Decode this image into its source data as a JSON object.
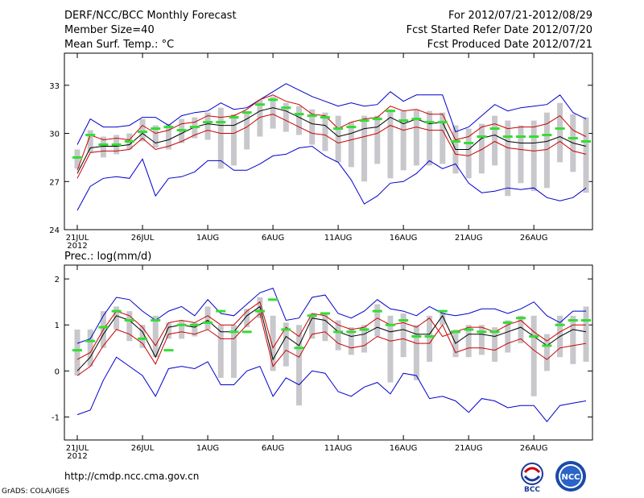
{
  "header": {
    "title": "DERF/NCC/BCC Monthly Forecast",
    "member_size": "Member Size=40",
    "variable": "Mean Surf. Temp.: °C",
    "forecast_period": "For 2012/07/21-2012/08/29",
    "started_date": "Fcst Started Refer Date 2012/07/20",
    "produced_date": "Fcst Produced Date 2012/07/21"
  },
  "footer": {
    "url": "http://cmdp.ncc.cma.gov.cn",
    "grads": "GrADS: COLA/IGES",
    "logo_bcc": "BCC",
    "logo_ncc": "NCC"
  },
  "colors": {
    "max_min": "#0000cc",
    "spread": "#cc0000",
    "mean": "#000000",
    "median": "#33dd33",
    "box": "#c8c8cc"
  },
  "chart_data": [
    {
      "type": "line",
      "title": "Mean Surf. Temp.: °C",
      "xlabel": "",
      "ylabel": "",
      "ylim": [
        24,
        35
      ],
      "yticks": [
        24,
        27,
        30,
        33
      ],
      "year_label": "2012",
      "x_tick_days": [
        1,
        6,
        11,
        16,
        21,
        26,
        31,
        36
      ],
      "x_tick_labels": [
        "21JUL",
        "26JUL",
        "1AUG",
        "6AUG",
        "11AUG",
        "16AUG",
        "21AUG",
        "26AUG"
      ],
      "days": [
        1,
        2,
        3,
        4,
        5,
        6,
        7,
        8,
        9,
        10,
        11,
        12,
        13,
        14,
        15,
        16,
        17,
        18,
        19,
        20,
        21,
        22,
        23,
        24,
        25,
        26,
        27,
        28,
        29,
        30,
        31,
        32,
        33,
        34,
        35,
        36,
        37,
        38,
        39,
        40
      ],
      "series": [
        {
          "name": "max",
          "values": [
            25.2,
            26.7,
            27.2,
            27.3,
            27.2,
            28.4,
            26.1,
            27.2,
            27.3,
            27.6,
            28.3,
            28.3,
            27.7,
            27.7,
            28.1,
            28.6,
            28.7,
            29.1,
            29.2,
            28.6,
            28.2,
            27.1,
            25.6,
            26.1,
            26.9,
            27.0,
            27.5,
            28.3,
            27.8,
            28.1,
            26.9,
            26.3,
            26.4,
            26.6,
            26.5,
            26.6,
            26.0,
            25.8,
            26.0,
            26.6
          ]
        },
        {
          "name": "min",
          "values": [
            29.3,
            30.9,
            30.4,
            30.4,
            30.5,
            31.0,
            31.0,
            30.5,
            31.1,
            31.3,
            31.4,
            31.9,
            31.5,
            31.6,
            32.1,
            32.6,
            33.1,
            32.7,
            32.3,
            32.0,
            31.7,
            31.9,
            31.7,
            31.8,
            32.6,
            32.0,
            32.4,
            32.4,
            32.4,
            30.1,
            30.4,
            31.1,
            31.8,
            31.4,
            31.6,
            31.7,
            31.8,
            32.4,
            31.3,
            30.9
          ]
        },
        {
          "name": "upper",
          "values": [
            27.7,
            29.9,
            29.6,
            29.7,
            29.6,
            30.5,
            30.0,
            30.2,
            30.6,
            30.7,
            31.1,
            31.0,
            31.1,
            31.5,
            32.1,
            32.4,
            32.0,
            31.8,
            31.2,
            31.1,
            30.3,
            30.7,
            30.9,
            31.0,
            31.7,
            31.4,
            31.5,
            31.2,
            31.2,
            29.6,
            29.8,
            30.4,
            30.6,
            30.3,
            30.4,
            30.4,
            30.6,
            31.1,
            30.2,
            29.8
          ]
        },
        {
          "name": "mean",
          "values": [
            27.5,
            29.1,
            29.2,
            29.2,
            29.3,
            30.0,
            29.4,
            29.6,
            30.0,
            30.4,
            30.6,
            30.5,
            30.5,
            30.9,
            31.4,
            31.6,
            31.4,
            31.0,
            30.6,
            30.5,
            29.8,
            30.0,
            30.3,
            30.4,
            31.0,
            30.6,
            30.9,
            30.6,
            30.7,
            29.0,
            29.0,
            29.7,
            29.9,
            29.5,
            29.4,
            29.4,
            29.5,
            29.8,
            29.4,
            29.2
          ]
        },
        {
          "name": "lower",
          "values": [
            27.2,
            28.8,
            28.9,
            28.9,
            29.0,
            29.7,
            29.0,
            29.2,
            29.5,
            29.9,
            30.2,
            30.0,
            30.0,
            30.4,
            31.0,
            31.2,
            30.8,
            30.4,
            30.0,
            29.9,
            29.4,
            29.6,
            29.8,
            30.0,
            30.5,
            30.2,
            30.4,
            30.2,
            30.2,
            28.7,
            28.6,
            29.0,
            29.5,
            29.1,
            29.0,
            28.9,
            29.0,
            29.5,
            28.9,
            28.7
          ]
        }
      ],
      "median": [
        28.5,
        29.9,
        29.3,
        29.3,
        29.5,
        30.1,
        30.3,
        30.4,
        30.2,
        30.4,
        30.7,
        30.7,
        31.0,
        31.3,
        31.8,
        32.1,
        31.6,
        31.2,
        31.1,
        31.0,
        30.3,
        30.4,
        30.8,
        30.9,
        31.4,
        30.8,
        30.9,
        30.7,
        30.7,
        29.5,
        29.4,
        29.8,
        30.3,
        29.8,
        29.8,
        29.8,
        29.9,
        30.3,
        29.7,
        29.5
      ],
      "box_high": [
        29.0,
        30.2,
        29.8,
        29.9,
        30.0,
        30.9,
        30.5,
        30.6,
        30.9,
        31.0,
        31.3,
        31.6,
        31.2,
        31.4,
        32.1,
        32.3,
        31.9,
        31.7,
        31.5,
        31.3,
        31.1,
        30.7,
        31.1,
        31.1,
        31.5,
        31.4,
        31.5,
        31.4,
        31.3,
        30.5,
        30.3,
        30.6,
        31.1,
        30.8,
        30.5,
        30.8,
        31.3,
        31.9,
        31.2,
        31.0
      ],
      "box_low": [
        27.8,
        28.8,
        28.5,
        28.7,
        29.0,
        29.5,
        29.1,
        29.0,
        29.4,
        29.7,
        29.6,
        27.8,
        28.0,
        29.0,
        29.8,
        30.3,
        30.1,
        29.9,
        29.3,
        28.9,
        28.2,
        27.9,
        27.0,
        28.1,
        27.2,
        27.7,
        28.0,
        28.0,
        28.1,
        27.5,
        27.2,
        27.5,
        28.0,
        26.1,
        26.9,
        26.4,
        26.6,
        28.2,
        27.6,
        26.3
      ]
    },
    {
      "type": "line",
      "title": "Prec.: log(mm/d)",
      "xlabel": "",
      "ylabel": "",
      "ylim": [
        -1.5,
        2.3
      ],
      "yticks": [
        -1,
        0,
        1,
        2
      ],
      "year_label": "2012",
      "x_tick_days": [
        1,
        6,
        11,
        16,
        21,
        26,
        31,
        36
      ],
      "x_tick_labels": [
        "21JUL",
        "26JUL",
        "1AUG",
        "6AUG",
        "11AUG",
        "16AUG",
        "21AUG",
        "26AUG"
      ],
      "days": [
        1,
        2,
        3,
        4,
        5,
        6,
        7,
        8,
        9,
        10,
        11,
        12,
        13,
        14,
        15,
        16,
        17,
        18,
        19,
        20,
        21,
        22,
        23,
        24,
        25,
        26,
        27,
        28,
        29,
        30,
        31,
        32,
        33,
        34,
        35,
        36,
        37,
        38,
        39,
        40
      ],
      "series": [
        {
          "name": "max",
          "values": [
            -0.95,
            -0.85,
            -0.2,
            0.3,
            0.1,
            -0.1,
            -0.55,
            0.05,
            0.1,
            0.05,
            0.2,
            -0.3,
            -0.3,
            0.0,
            0.1,
            -0.55,
            -0.15,
            -0.3,
            0.0,
            -0.05,
            -0.45,
            -0.55,
            -0.35,
            -0.25,
            -0.5,
            -0.05,
            -0.1,
            -0.6,
            -0.55,
            -0.65,
            -0.9,
            -0.6,
            -0.65,
            -0.8,
            -0.75,
            -0.75,
            -1.1,
            -0.75,
            -0.7,
            -0.65
          ]
        },
        {
          "name": "min",
          "values": [
            0.6,
            0.7,
            1.2,
            1.6,
            1.55,
            1.3,
            1.1,
            1.3,
            1.4,
            1.2,
            1.55,
            1.25,
            1.2,
            1.45,
            1.7,
            1.8,
            1.1,
            1.15,
            1.6,
            1.65,
            1.25,
            1.15,
            1.3,
            1.55,
            1.35,
            1.3,
            1.2,
            1.4,
            1.25,
            1.2,
            1.25,
            1.35,
            1.35,
            1.25,
            1.35,
            1.5,
            1.2,
            1.05,
            1.3,
            1.3
          ]
        },
        {
          "name": "upper",
          "values": [
            0.25,
            0.4,
            0.9,
            1.3,
            1.2,
            0.95,
            0.55,
            1.05,
            1.1,
            1.05,
            1.2,
            1.0,
            1.0,
            1.3,
            1.5,
            0.5,
            0.95,
            0.75,
            1.25,
            1.2,
            1.0,
            0.9,
            0.95,
            1.15,
            1.0,
            1.05,
            0.95,
            1.15,
            0.75,
            0.85,
            0.95,
            0.95,
            0.85,
            1.0,
            1.1,
            0.85,
            0.65,
            0.85,
            1.0,
            1.0
          ]
        },
        {
          "name": "mean",
          "values": [
            0.0,
            0.3,
            0.8,
            1.2,
            1.1,
            0.85,
            0.3,
            0.95,
            1.0,
            0.95,
            1.1,
            0.85,
            0.85,
            1.2,
            1.4,
            0.25,
            0.75,
            0.55,
            1.15,
            1.1,
            0.85,
            0.75,
            0.8,
            0.95,
            0.85,
            0.9,
            0.8,
            0.8,
            1.2,
            0.6,
            0.8,
            0.8,
            0.75,
            0.85,
            0.95,
            0.75,
            0.55,
            0.75,
            0.9,
            0.85
          ]
        },
        {
          "name": "lower",
          "values": [
            -0.1,
            0.1,
            0.55,
            0.9,
            0.8,
            0.6,
            0.15,
            0.8,
            0.85,
            0.8,
            0.9,
            0.7,
            0.7,
            1.0,
            1.25,
            0.1,
            0.45,
            0.3,
            0.8,
            0.85,
            0.6,
            0.5,
            0.55,
            0.75,
            0.65,
            0.7,
            0.6,
            0.6,
            1.0,
            0.4,
            0.5,
            0.5,
            0.45,
            0.6,
            0.7,
            0.45,
            0.25,
            0.5,
            0.55,
            0.6
          ]
        }
      ],
      "median": [
        0.45,
        0.65,
        0.95,
        1.3,
        1.1,
        0.7,
        1.1,
        0.45,
        1.0,
        1.0,
        1.05,
        1.3,
        0.85,
        0.85,
        1.3,
        1.55,
        0.9,
        0.5,
        1.2,
        1.25,
        0.85,
        0.85,
        0.9,
        1.3,
        1.0,
        1.1,
        0.75,
        0.75,
        1.3,
        0.85,
        0.9,
        0.85,
        0.85,
        1.05,
        1.15,
        0.75,
        0.55,
        1.0,
        1.1,
        1.1
      ],
      "box_high": [
        0.9,
        0.9,
        1.3,
        1.4,
        1.3,
        1.0,
        1.2,
        1.05,
        1.1,
        1.05,
        1.4,
        1.0,
        1.0,
        1.35,
        1.6,
        1.2,
        1.05,
        1.0,
        1.25,
        1.25,
        1.1,
        0.95,
        1.0,
        1.45,
        1.2,
        1.25,
        1.0,
        1.2,
        1.3,
        0.9,
        1.0,
        1.0,
        0.95,
        1.1,
        1.2,
        1.2,
        0.8,
        1.2,
        1.2,
        1.4
      ],
      "box_low": [
        -0.1,
        0.1,
        0.5,
        0.9,
        0.65,
        0.5,
        0.3,
        0.7,
        0.7,
        0.75,
        0.9,
        -0.15,
        -0.15,
        0.95,
        1.15,
        0.0,
        0.1,
        -0.75,
        0.7,
        0.65,
        0.45,
        0.35,
        0.4,
        0.75,
        -0.25,
        0.3,
        -0.2,
        0.2,
        1.0,
        0.3,
        0.3,
        0.35,
        0.2,
        0.4,
        0.6,
        -0.55,
        0.0,
        0.3,
        0.15,
        0.2
      ]
    }
  ]
}
